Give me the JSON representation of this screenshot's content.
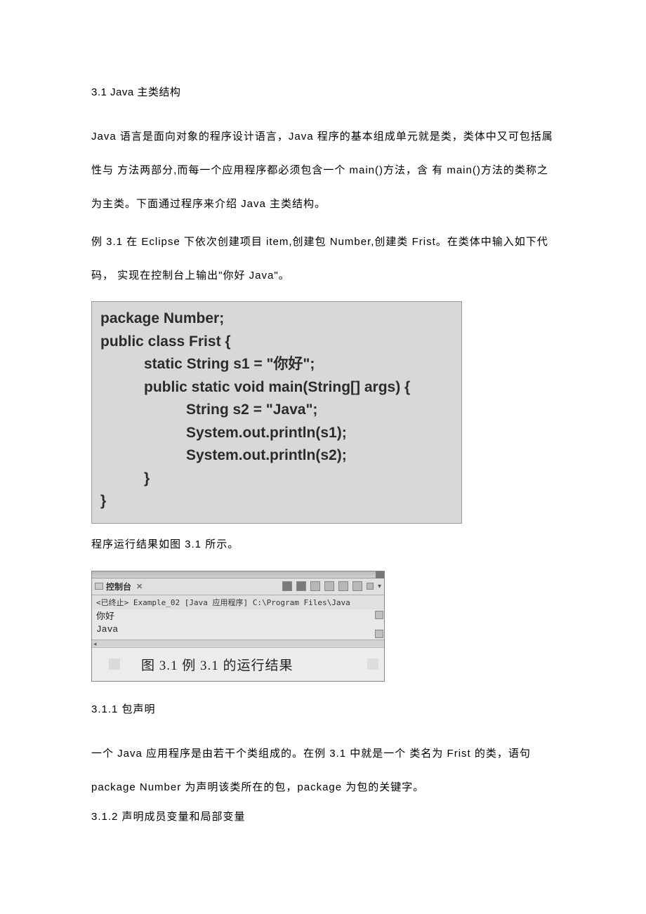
{
  "section": {
    "title": "3.1 Java 主类结构",
    "para1": "Java 语言是面向对象的程序设计语言，Java 程序的基本组成单元就是类，类体中又可包括属性与 方法两部分,而每一个应用程序都必须包含一个 main()方法，含 有 main()方法的类称之为主类。下面通过程序来介绍 Java 主类结构。",
    "para2": "例 3.1 在 Eclipse 下依次创建项目 item,创建包 Number,创建类 Frist。在类体中输入如下代码， 实现在控制台上输出\"你好 Java\"。"
  },
  "code": {
    "l1": "package Number;",
    "l2": "public class Frist {",
    "l3": "static String s1 = \"你好\";",
    "l4": "public static void main(String[] args) {",
    "l5": "String s2 = \"Java\";",
    "l6": "System.out.println(s1);",
    "l7": "System.out.println(s2);",
    "l8": "}",
    "l9": "}"
  },
  "result_text": "程序运行结果如图 3.1 所示。",
  "console": {
    "tab_label": "控制台",
    "subtitle": "<已终止> Example_02 [Java 应用程序] C:\\Program Files\\Java",
    "out1": "你好",
    "out2": "Java",
    "caption": "图 3.1   例 3.1 的运行结果"
  },
  "sub311": {
    "heading": "3.1.1 包声明",
    "para": "一个 Java 应用程序是由若干个类组成的。在例 3.1 中就是一个 类名为 Frist 的类，语句package Number 为声明该类所在的包，package 为包的关键字。"
  },
  "sub312": {
    "heading": "3.1.2 声明成员变量和局部变量"
  }
}
